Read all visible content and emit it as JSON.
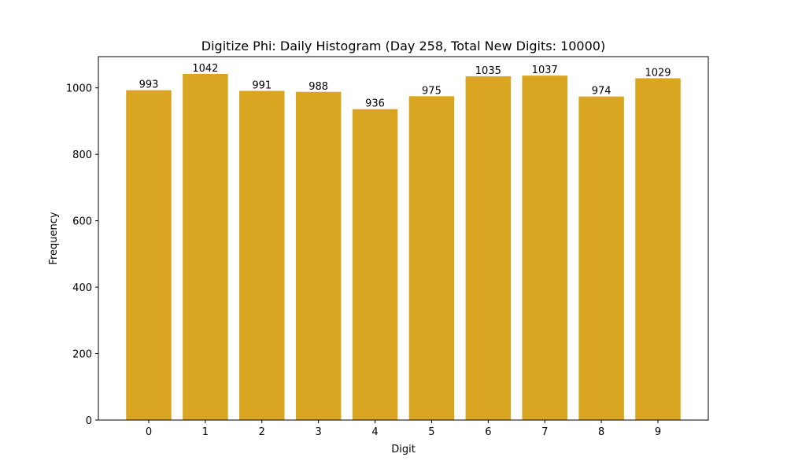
{
  "chart_data": {
    "type": "bar",
    "title": "Digitize Phi: Daily Histogram (Day 258, Total New Digits: 10000)",
    "xlabel": "Digit",
    "ylabel": "Frequency",
    "categories": [
      "0",
      "1",
      "2",
      "3",
      "4",
      "5",
      "6",
      "7",
      "8",
      "9"
    ],
    "values": [
      993,
      1042,
      991,
      988,
      936,
      975,
      1035,
      1037,
      974,
      1029
    ],
    "ylim": [
      0,
      1094
    ],
    "yticks": [
      0,
      200,
      400,
      600,
      800,
      1000
    ],
    "grid": false,
    "legend": null,
    "bar_color": "#DAA520",
    "data_labels": true
  }
}
